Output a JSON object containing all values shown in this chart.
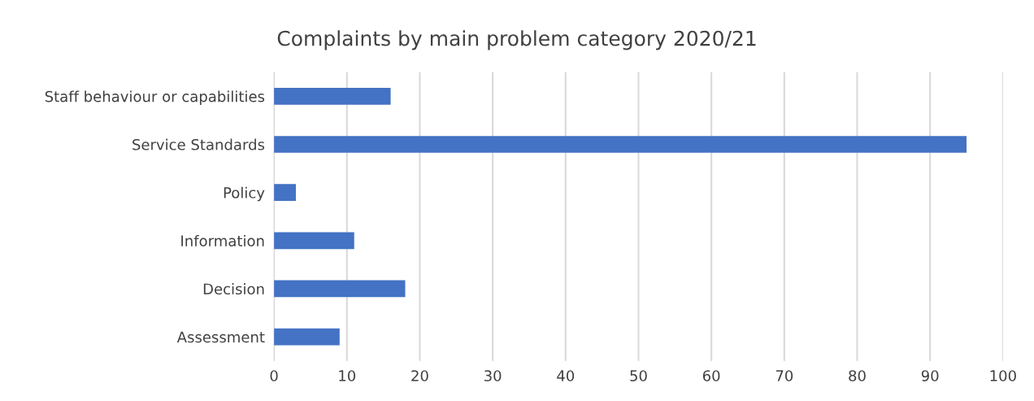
{
  "chart_data": {
    "type": "bar",
    "orientation": "horizontal",
    "title": "Complaints by main problem category 2020/21",
    "categories": [
      "Staff behaviour or capabilities",
      "Service Standards",
      "Policy",
      "Information",
      "Decision",
      "Assessment"
    ],
    "values": [
      16,
      95,
      3,
      11,
      18,
      9
    ],
    "color": "#4472c4",
    "xlim": [
      0,
      100
    ],
    "xticks": [
      0,
      10,
      20,
      30,
      40,
      50,
      60,
      70,
      80,
      90,
      100
    ],
    "grid": "x",
    "legend": false
  }
}
